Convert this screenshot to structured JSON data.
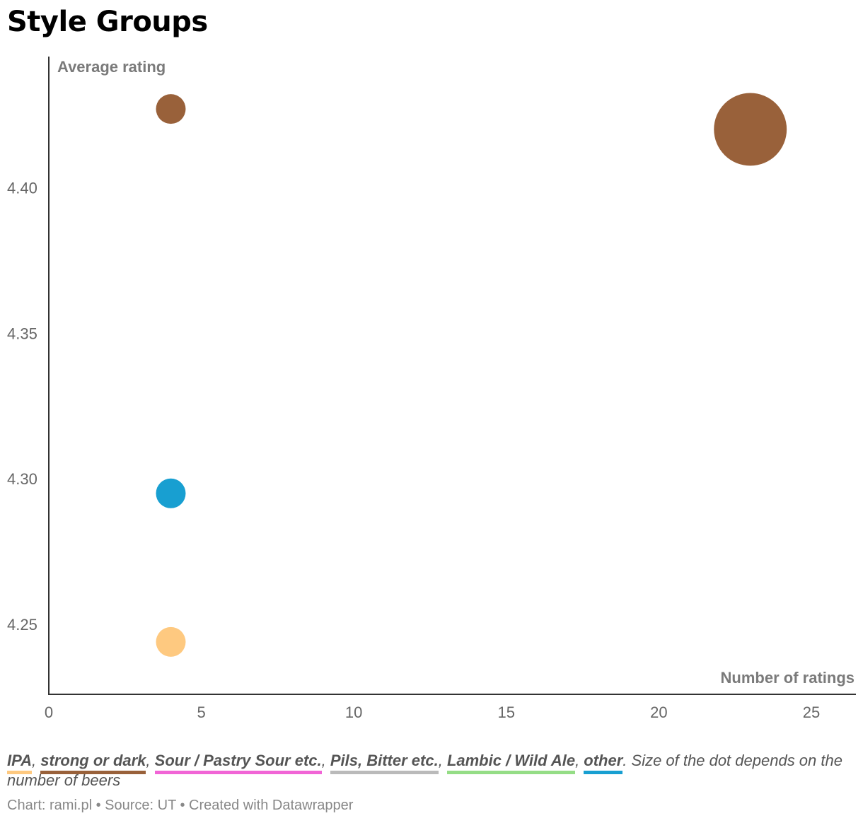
{
  "title": "Style Groups",
  "chart_data": {
    "type": "scatter",
    "title": "Style Groups",
    "xlabel": "Number of ratings",
    "ylabel": "Average rating",
    "xlim": [
      0,
      26.3
    ],
    "ylim": [
      4.226,
      4.445
    ],
    "xticks": [
      0,
      5,
      10,
      15,
      20,
      25
    ],
    "yticks": [
      4.25,
      4.3,
      4.35,
      4.4
    ],
    "xtick_labels": [
      "0",
      "5",
      "10",
      "15",
      "20",
      "25"
    ],
    "ytick_labels": [
      "4.25",
      "4.30",
      "4.35",
      "4.40"
    ],
    "grid": false,
    "size_encodes": "number of beers",
    "points": [
      {
        "x": 4,
        "y": 4.427,
        "series": "strong or dark",
        "size": 1
      },
      {
        "x": 23,
        "y": 4.42,
        "series": "strong or dark",
        "size": 6
      },
      {
        "x": 4,
        "y": 4.295,
        "series": "other",
        "size": 1
      },
      {
        "x": 4,
        "y": 4.244,
        "series": "IPA",
        "size": 1
      }
    ]
  },
  "legend": {
    "items": [
      {
        "label": "IPA",
        "color": "#fec980"
      },
      {
        "label": "strong or dark",
        "color": "#99613a"
      },
      {
        "label": "Sour / Pastry Sour etc.",
        "color": "#f165d6"
      },
      {
        "label": "Pils, Bitter etc.",
        "color": "#bababa"
      },
      {
        "label": "Lambic / Wild Ale",
        "color": "#95dd86"
      },
      {
        "label": "other",
        "color": "#189fd1"
      }
    ],
    "note": ". Size of the dot depends on the number of beers"
  },
  "footer": "Chart: rami.pl • Source: UT • Created with Datawrapper"
}
